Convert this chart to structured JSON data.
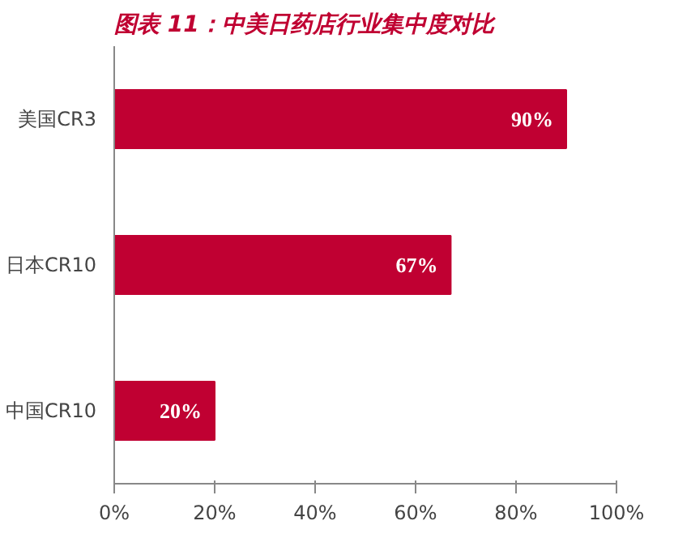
{
  "chart_data": {
    "type": "bar",
    "orientation": "horizontal",
    "title": "图表 11：中美日药店行业集中度对比",
    "categories": [
      "美国CR3",
      "日本CR10",
      "中国CR10"
    ],
    "values": [
      90,
      67,
      20
    ],
    "color": "#c00032",
    "value_labels": [
      "90%",
      "67%",
      "20%"
    ],
    "xlim": [
      0,
      100
    ],
    "xticks": [
      {
        "value": 0,
        "label": "0%"
      },
      {
        "value": 20,
        "label": "20%"
      },
      {
        "value": 40,
        "label": "40%"
      },
      {
        "value": 60,
        "label": "60%"
      },
      {
        "value": 80,
        "label": "80%"
      },
      {
        "value": 100,
        "label": "100%"
      }
    ],
    "grid": false
  }
}
